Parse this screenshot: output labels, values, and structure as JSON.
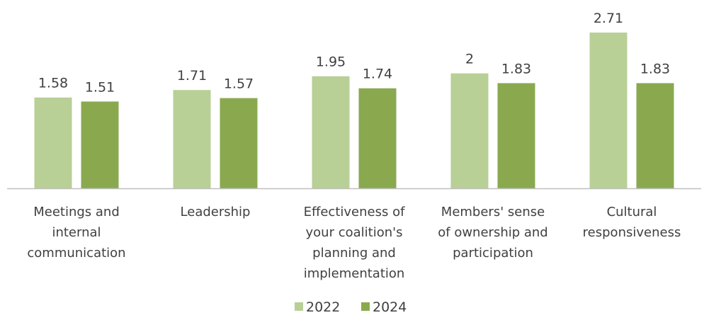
{
  "chart_data": {
    "type": "bar",
    "categories": [
      [
        "Meetings and",
        "internal",
        "communication"
      ],
      [
        "Leadership"
      ],
      [
        "Effectiveness of",
        "your coalition's",
        "planning and",
        "implementation"
      ],
      [
        "Members' sense",
        "of ownership and",
        "participation"
      ],
      [
        "Cultural",
        "responsiveness"
      ]
    ],
    "series": [
      {
        "name": "2022",
        "values": [
          1.58,
          1.71,
          1.95,
          2,
          2.71
        ],
        "labels": [
          "1.58",
          "1.71",
          "1.95",
          "2",
          "2.71"
        ],
        "color": "#b8cf96"
      },
      {
        "name": "2024",
        "values": [
          1.51,
          1.57,
          1.74,
          1.83,
          1.83
        ],
        "labels": [
          "1.51",
          "1.57",
          "1.74",
          "1.83",
          "1.83"
        ],
        "color": "#8aa94f"
      }
    ],
    "ylim": [
      0,
      2.71
    ],
    "grid": false,
    "legend": "bottom-center",
    "axis_color": "#bfbfbf",
    "text_color": "#404040"
  }
}
